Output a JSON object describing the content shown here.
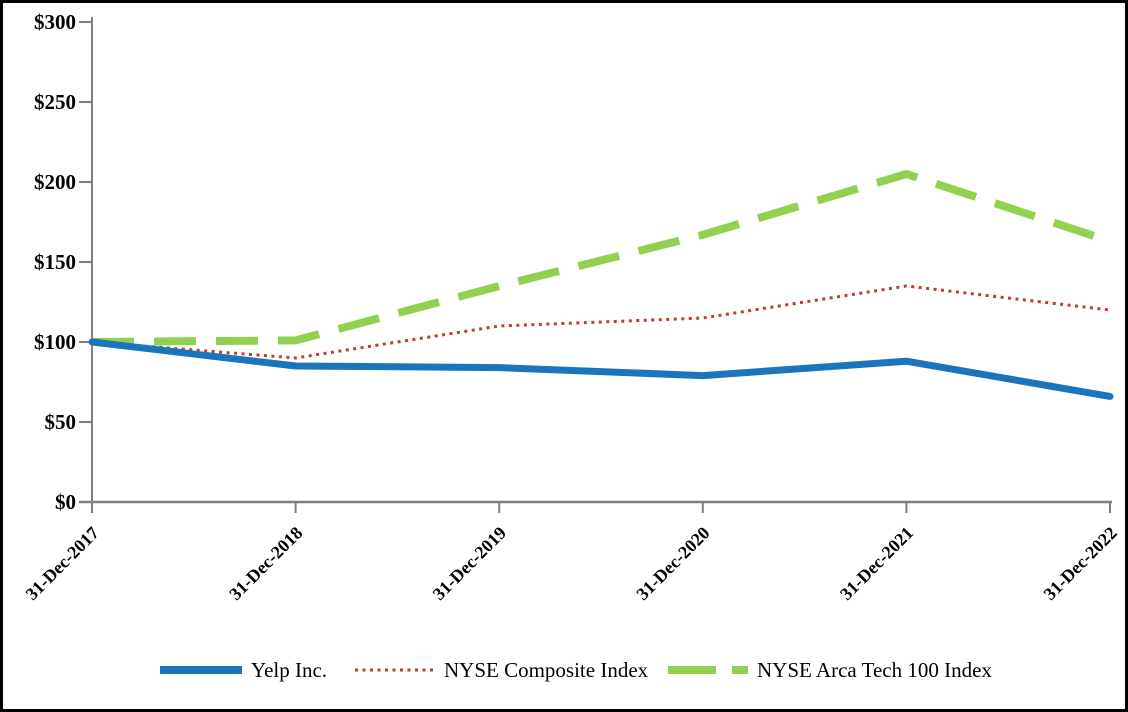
{
  "frame": {
    "background": "#ffffff",
    "border_color": "#000000"
  },
  "chart_data": {
    "type": "line",
    "title": "",
    "xlabel": "",
    "ylabel": "",
    "categories": [
      "31-Dec-2017",
      "31-Dec-2018",
      "31-Dec-2019",
      "31-Dec-2020",
      "31-Dec-2021",
      "31-Dec-2022"
    ],
    "series": [
      {
        "name": "Yelp Inc.",
        "values": [
          100,
          85,
          84,
          79,
          88,
          66
        ],
        "color": "#1b75bc",
        "style": "solid"
      },
      {
        "name": "NYSE Composite Index",
        "values": [
          100,
          90,
          110,
          115,
          135,
          120
        ],
        "color": "#c23b2e",
        "style": "dotted"
      },
      {
        "name": "NYSE Arca Tech 100 Index",
        "values": [
          100,
          101,
          135,
          167,
          205,
          163
        ],
        "color": "#92d050",
        "style": "dashed"
      }
    ],
    "ylim": [
      0,
      300
    ],
    "ytick_step": 50,
    "ytick_labels": [
      "$0",
      "$50",
      "$100",
      "$150",
      "$200",
      "$250",
      "$300"
    ],
    "grid": false,
    "legend_position": "bottom",
    "axis_color": "#7f7f7f"
  }
}
